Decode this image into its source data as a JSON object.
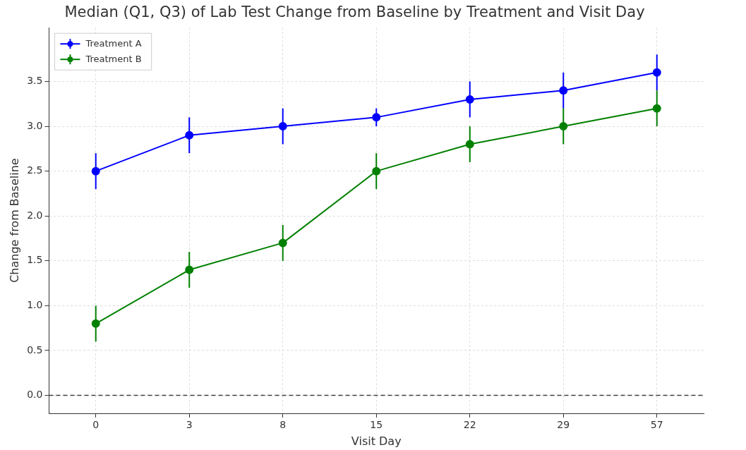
{
  "chart_data": {
    "type": "line",
    "title": "Median (Q1, Q3) of Lab Test Change from Baseline by Treatment and Visit Day",
    "xlabel": "Visit Day",
    "ylabel": "Change from Baseline",
    "categories": [
      "0",
      "3",
      "8",
      "15",
      "22",
      "29",
      "57"
    ],
    "series": [
      {
        "name": "Treatment A",
        "color": "#0000ff",
        "values": [
          2.5,
          2.9,
          3.0,
          3.1,
          3.3,
          3.4,
          3.6
        ],
        "errors": [
          [
            2.3,
            2.7
          ],
          [
            2.7,
            3.1
          ],
          [
            2.8,
            3.2
          ],
          [
            3.0,
            3.2
          ],
          [
            3.1,
            3.5
          ],
          [
            3.2,
            3.6
          ],
          [
            3.4,
            3.8
          ]
        ]
      },
      {
        "name": "Treatment B",
        "color": "#008000",
        "values": [
          0.8,
          1.4,
          1.7,
          2.5,
          2.8,
          3.0,
          3.2
        ],
        "errors": [
          [
            0.6,
            1.0
          ],
          [
            1.2,
            1.6
          ],
          [
            1.5,
            1.9
          ],
          [
            2.3,
            2.7
          ],
          [
            2.6,
            3.0
          ],
          [
            2.8,
            3.2
          ],
          [
            3.0,
            3.4
          ]
        ]
      }
    ],
    "ylim": [
      -0.2,
      4.1
    ],
    "yticks": [
      {
        "value": 0,
        "label": "0.0"
      },
      {
        "value": 0.5,
        "label": "0.5"
      },
      {
        "value": 1,
        "label": "1.0"
      },
      {
        "value": 1.5,
        "label": "1.5"
      },
      {
        "value": 2,
        "label": "2.0"
      },
      {
        "value": 2.5,
        "label": "2.5"
      },
      {
        "value": 3,
        "label": "3.0"
      },
      {
        "value": 3.5,
        "label": "3.5"
      }
    ],
    "ref_lines": [
      {
        "axis": "y",
        "value": 0,
        "color": "#404040",
        "line_style": "dashed"
      }
    ],
    "grid": true,
    "legend": "top left",
    "marker": "circle",
    "line_style": "solid"
  }
}
